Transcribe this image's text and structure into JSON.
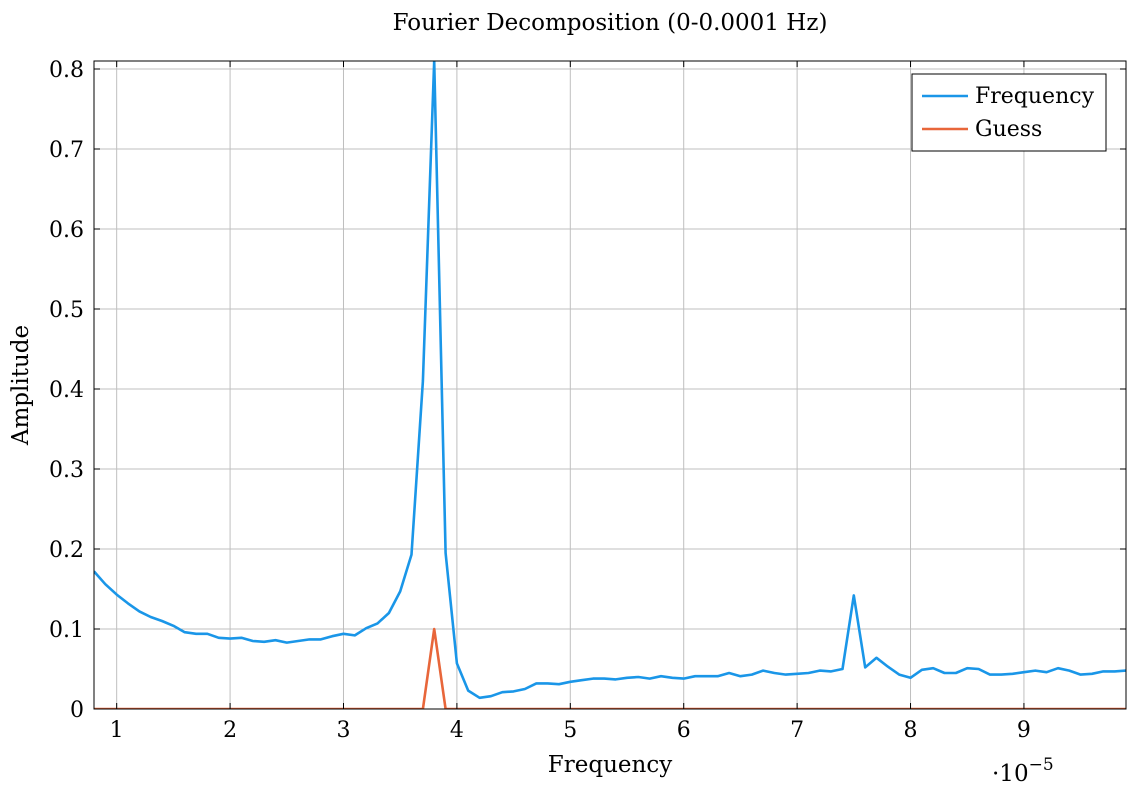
{
  "chart_data": {
    "type": "line",
    "title": "Fourier Decomposition (0-0.0001 Hz)",
    "xlabel": "Frequency",
    "ylabel": "Amplitude",
    "x_scale_label": "·10",
    "x_scale_exponent": "−5",
    "xlim": [
      0.8,
      9.9
    ],
    "ylim": [
      0,
      0.81
    ],
    "xticks": [
      1,
      2,
      3,
      4,
      5,
      6,
      7,
      8,
      9
    ],
    "xtick_labels": [
      "1",
      "2",
      "3",
      "4",
      "5",
      "6",
      "7",
      "8",
      "9"
    ],
    "yticks": [
      0,
      0.1,
      0.2,
      0.3,
      0.4,
      0.5,
      0.6,
      0.7,
      0.8
    ],
    "ytick_labels": [
      "0",
      "0.1",
      "0.2",
      "0.3",
      "0.4",
      "0.5",
      "0.6",
      "0.7",
      "0.8"
    ],
    "grid": true,
    "legend_position": "top-right",
    "series": [
      {
        "name": "Frequency",
        "color": "#1a96e8",
        "x": [
          0.8,
          0.9,
          1.0,
          1.1,
          1.2,
          1.3,
          1.4,
          1.5,
          1.6,
          1.7,
          1.8,
          1.9,
          2.0,
          2.1,
          2.2,
          2.3,
          2.4,
          2.5,
          2.6,
          2.7,
          2.8,
          2.9,
          3.0,
          3.1,
          3.2,
          3.3,
          3.4,
          3.5,
          3.6,
          3.7,
          3.8,
          3.9,
          4.0,
          4.1,
          4.2,
          4.3,
          4.4,
          4.5,
          4.6,
          4.7,
          4.8,
          4.9,
          5.0,
          5.1,
          5.2,
          5.3,
          5.4,
          5.5,
          5.6,
          5.7,
          5.8,
          5.9,
          6.0,
          6.1,
          6.2,
          6.3,
          6.4,
          6.5,
          6.6,
          6.7,
          6.8,
          6.9,
          7.0,
          7.1,
          7.2,
          7.3,
          7.4,
          7.5,
          7.6,
          7.7,
          7.8,
          7.9,
          8.0,
          8.1,
          8.2,
          8.3,
          8.4,
          8.5,
          8.6,
          8.7,
          8.8,
          8.9,
          9.0,
          9.1,
          9.2,
          9.3,
          9.4,
          9.5,
          9.6,
          9.7,
          9.8,
          9.9
        ],
        "y": [
          0.172,
          0.156,
          0.143,
          0.132,
          0.122,
          0.115,
          0.11,
          0.104,
          0.096,
          0.094,
          0.094,
          0.089,
          0.088,
          0.089,
          0.085,
          0.084,
          0.086,
          0.083,
          0.085,
          0.087,
          0.087,
          0.091,
          0.094,
          0.092,
          0.101,
          0.107,
          0.12,
          0.147,
          0.193,
          0.41,
          0.81,
          0.195,
          0.057,
          0.023,
          0.014,
          0.016,
          0.021,
          0.022,
          0.025,
          0.032,
          0.032,
          0.031,
          0.034,
          0.036,
          0.038,
          0.038,
          0.037,
          0.039,
          0.04,
          0.038,
          0.041,
          0.039,
          0.038,
          0.041,
          0.041,
          0.041,
          0.045,
          0.041,
          0.043,
          0.048,
          0.045,
          0.043,
          0.044,
          0.045,
          0.048,
          0.047,
          0.05,
          0.142,
          0.052,
          0.064,
          0.053,
          0.043,
          0.039,
          0.049,
          0.051,
          0.045,
          0.045,
          0.051,
          0.05,
          0.043,
          0.043,
          0.044,
          0.046,
          0.048,
          0.046,
          0.051,
          0.048,
          0.043,
          0.044,
          0.047,
          0.047,
          0.048
        ]
      },
      {
        "name": "Guess",
        "color": "#e8663a",
        "x": [
          0.8,
          3.7,
          3.8,
          3.9,
          9.9
        ],
        "y": [
          0,
          0,
          0.1,
          0,
          0
        ]
      }
    ]
  }
}
